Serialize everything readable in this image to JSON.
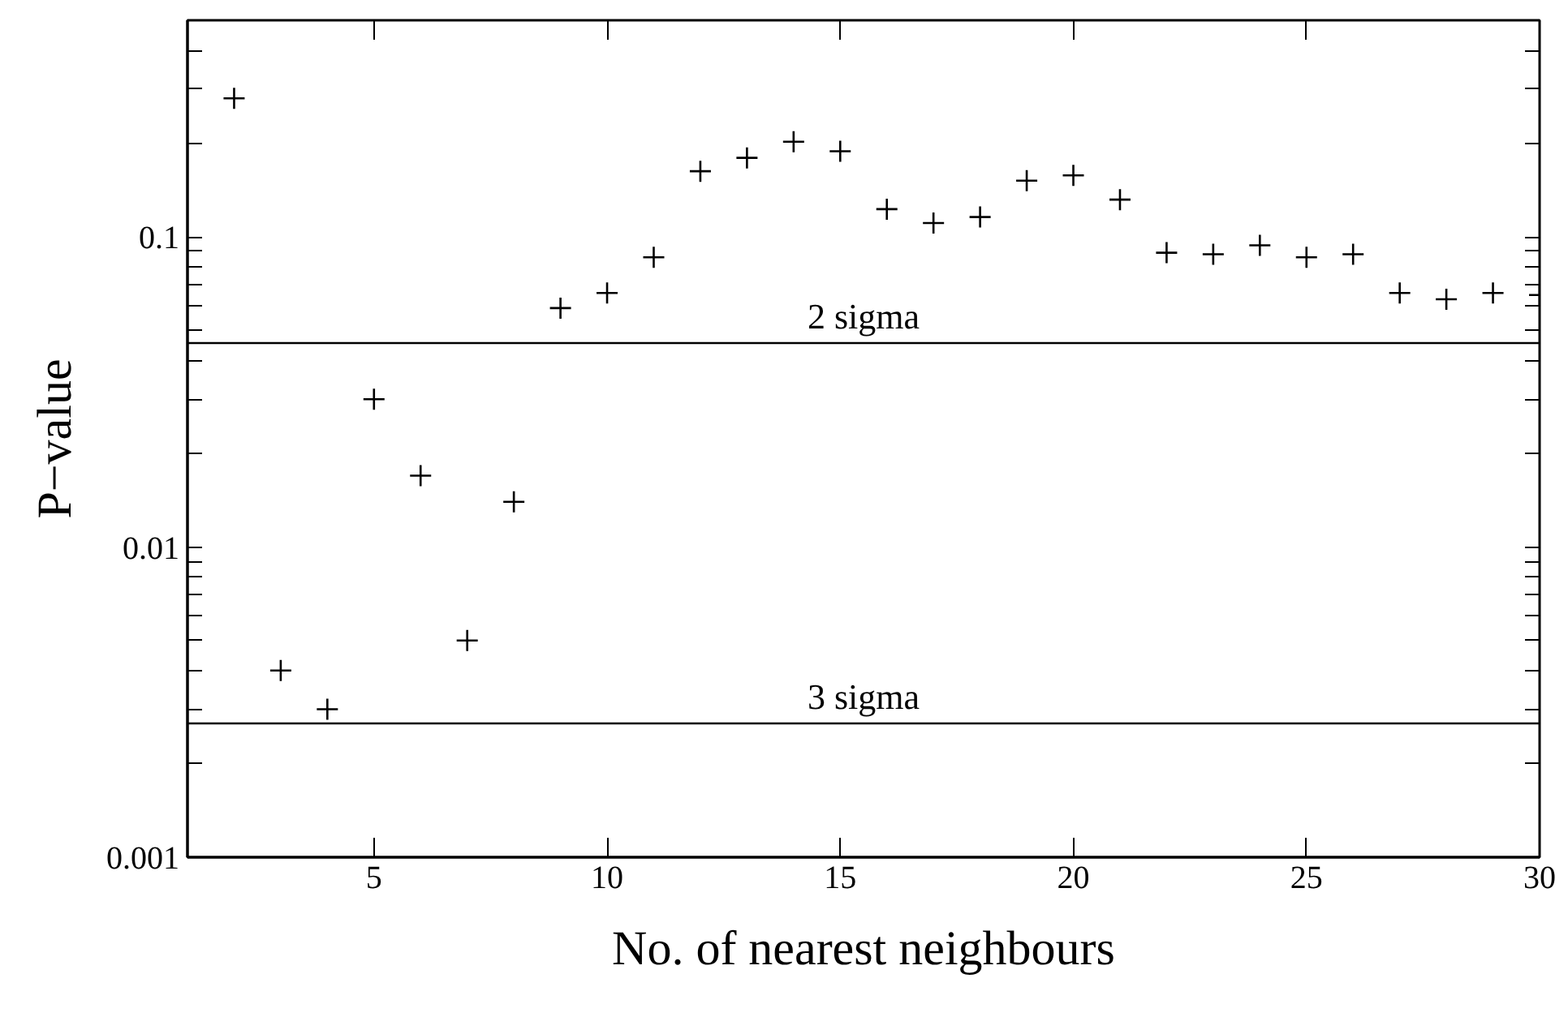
{
  "chart_data": {
    "type": "scatter",
    "xlabel": "No. of nearest neighbours",
    "ylabel": "P−value",
    "x": [
      2,
      3,
      4,
      5,
      6,
      7,
      8,
      9,
      10,
      11,
      12,
      13,
      14,
      15,
      16,
      17,
      18,
      19,
      20,
      21,
      22,
      23,
      24,
      25,
      26,
      27,
      28,
      29,
      30
    ],
    "series": [
      {
        "color": "#000000",
        "values": [
          0.28,
          0.004,
          0.003,
          0.03,
          0.017,
          0.005,
          0.014,
          0.059,
          0.066,
          0.086,
          0.163,
          0.18,
          0.203,
          0.189,
          0.123,
          0.111,
          0.116,
          0.152,
          0.158,
          0.132,
          0.089,
          0.088,
          0.094,
          0.086,
          0.088,
          0.066,
          0.063,
          0.066,
          0.065
        ]
      }
    ],
    "marker": "cross",
    "log": "y",
    "grid": false,
    "xlim": [
      1,
      30
    ],
    "xticks": [
      5,
      10,
      15,
      20,
      25,
      30
    ],
    "ylim": [
      0.001,
      0.5
    ],
    "yticks": [
      {
        "value": 0.001,
        "label": "0.001"
      },
      {
        "value": 0.002,
        "label": null
      },
      {
        "value": 0.003,
        "label": null
      },
      {
        "value": 0.004,
        "label": null
      },
      {
        "value": 0.005,
        "label": null
      },
      {
        "value": 0.006,
        "label": null
      },
      {
        "value": 0.007,
        "label": null
      },
      {
        "value": 0.008,
        "label": null
      },
      {
        "value": 0.009,
        "label": null
      },
      {
        "value": 0.01,
        "label": "0.01"
      },
      {
        "value": 0.02,
        "label": null
      },
      {
        "value": 0.03,
        "label": null
      },
      {
        "value": 0.04,
        "label": null
      },
      {
        "value": 0.05,
        "label": null
      },
      {
        "value": 0.06,
        "label": null
      },
      {
        "value": 0.07,
        "label": null
      },
      {
        "value": 0.08,
        "label": null
      },
      {
        "value": 0.09,
        "label": null
      },
      {
        "value": 0.1,
        "label": "0.1"
      },
      {
        "value": 0.2,
        "label": null
      },
      {
        "value": 0.3,
        "label": null
      },
      {
        "value": 0.4,
        "label": null
      }
    ],
    "ref_lines": [
      {
        "axis": "y",
        "value": 0.0455,
        "label": "2 sigma",
        "color": "#000000"
      },
      {
        "axis": "y",
        "value": 0.0027,
        "label": "3 sigma",
        "color": "#000000"
      }
    ]
  }
}
